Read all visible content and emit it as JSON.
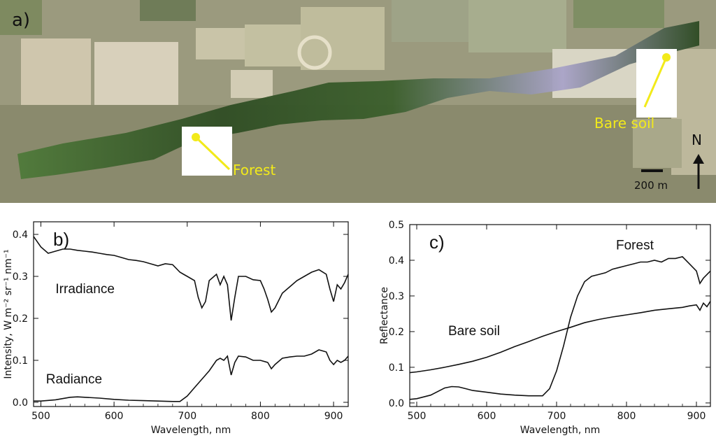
{
  "map": {
    "panel_label": "a)",
    "forest_label": "Forest",
    "bare_soil_label": "Bare soil",
    "north_label": "N",
    "scale_label": "200 m",
    "label_color": "#f2ea1a",
    "colors": {
      "field_tan": "#cdbf9c",
      "woods": "#7a7b5c",
      "forest_strip": "#2d4a22",
      "pale_field": "#e3ddc8"
    }
  },
  "chart_data": [
    {
      "type": "line",
      "panel_label": "b)",
      "title": "",
      "xlabel": "Wavelength, nm",
      "ylabel": "Intensity, W m⁻² sr⁻¹ nm⁻¹",
      "xlim": [
        490,
        920
      ],
      "ylim": [
        -0.01,
        0.43
      ],
      "x_ticks": [
        500,
        600,
        700,
        800,
        900
      ],
      "y_ticks": [
        0.0,
        0.1,
        0.2,
        0.3,
        0.4
      ],
      "y_tick_labels": [
        "0.0",
        "0.1",
        "0.2",
        "0.3",
        "0.4"
      ],
      "grid": false,
      "annotations": [
        {
          "text": "Irradiance",
          "x": 520,
          "y": 0.26
        },
        {
          "text": "Radiance",
          "x": 507,
          "y": 0.045
        }
      ],
      "series": [
        {
          "x": [
            490,
            500,
            510,
            520,
            530,
            540,
            550,
            560,
            570,
            580,
            590,
            600,
            610,
            620,
            630,
            640,
            650,
            660,
            670,
            680,
            690,
            695,
            700,
            710,
            715,
            720,
            725,
            730,
            740,
            745,
            750,
            755,
            760,
            765,
            770,
            780,
            790,
            800,
            805,
            810,
            815,
            820,
            830,
            840,
            850,
            860,
            870,
            880,
            890,
            895,
            900,
            905,
            910,
            915,
            920
          ],
          "y": [
            0.395,
            0.37,
            0.355,
            0.36,
            0.365,
            0.365,
            0.362,
            0.36,
            0.358,
            0.355,
            0.352,
            0.35,
            0.345,
            0.34,
            0.338,
            0.335,
            0.33,
            0.325,
            0.33,
            0.328,
            0.31,
            0.305,
            0.3,
            0.29,
            0.25,
            0.225,
            0.24,
            0.29,
            0.305,
            0.28,
            0.3,
            0.28,
            0.195,
            0.25,
            0.3,
            0.3,
            0.292,
            0.29,
            0.27,
            0.245,
            0.215,
            0.225,
            0.26,
            0.275,
            0.29,
            0.3,
            0.31,
            0.316,
            0.305,
            0.27,
            0.24,
            0.28,
            0.27,
            0.285,
            0.305
          ]
        },
        {
          "x": [
            490,
            500,
            520,
            540,
            550,
            560,
            580,
            600,
            620,
            640,
            660,
            680,
            690,
            700,
            710,
            720,
            730,
            740,
            745,
            750,
            755,
            760,
            765,
            770,
            780,
            790,
            800,
            810,
            815,
            820,
            830,
            840,
            850,
            860,
            870,
            880,
            890,
            895,
            900,
            905,
            910,
            915,
            920
          ],
          "y": [
            0.003,
            0.003,
            0.006,
            0.012,
            0.013,
            0.012,
            0.01,
            0.007,
            0.005,
            0.004,
            0.003,
            0.002,
            0.002,
            0.015,
            0.035,
            0.055,
            0.075,
            0.1,
            0.105,
            0.1,
            0.11,
            0.065,
            0.095,
            0.11,
            0.108,
            0.1,
            0.1,
            0.095,
            0.08,
            0.09,
            0.105,
            0.108,
            0.11,
            0.11,
            0.115,
            0.125,
            0.12,
            0.1,
            0.09,
            0.1,
            0.095,
            0.1,
            0.11
          ]
        }
      ]
    },
    {
      "type": "line",
      "panel_label": "c)",
      "title": "",
      "xlabel": "Wavelength, nm",
      "ylabel": "Reflectance",
      "xlim": [
        490,
        920
      ],
      "ylim": [
        -0.01,
        0.5
      ],
      "x_ticks": [
        500,
        600,
        700,
        800,
        900
      ],
      "y_ticks": [
        0.0,
        0.1,
        0.2,
        0.3,
        0.4,
        0.5
      ],
      "y_tick_labels": [
        "0.0",
        "0.1",
        "0.2",
        "0.3",
        "0.4",
        "0.5"
      ],
      "grid": false,
      "annotations": [
        {
          "text": "Forest",
          "x": 785,
          "y": 0.43
        },
        {
          "text": "Bare soil",
          "x": 545,
          "y": 0.19
        }
      ],
      "series": [
        {
          "x": [
            490,
            500,
            520,
            540,
            550,
            560,
            570,
            580,
            600,
            620,
            640,
            660,
            680,
            690,
            700,
            710,
            720,
            725,
            730,
            740,
            750,
            760,
            770,
            780,
            790,
            800,
            810,
            820,
            830,
            840,
            850,
            860,
            870,
            880,
            890,
            900,
            905,
            910,
            915,
            920
          ],
          "y": [
            0.01,
            0.012,
            0.022,
            0.042,
            0.046,
            0.045,
            0.04,
            0.035,
            0.03,
            0.025,
            0.022,
            0.02,
            0.02,
            0.04,
            0.09,
            0.16,
            0.24,
            0.27,
            0.3,
            0.34,
            0.355,
            0.36,
            0.365,
            0.375,
            0.38,
            0.385,
            0.39,
            0.395,
            0.395,
            0.4,
            0.395,
            0.405,
            0.405,
            0.41,
            0.39,
            0.37,
            0.335,
            0.35,
            0.36,
            0.37
          ]
        },
        {
          "x": [
            490,
            500,
            520,
            540,
            560,
            580,
            600,
            620,
            640,
            660,
            680,
            700,
            720,
            740,
            760,
            780,
            800,
            820,
            840,
            860,
            880,
            890,
            900,
            905,
            910,
            915,
            920
          ],
          "y": [
            0.085,
            0.087,
            0.093,
            0.1,
            0.108,
            0.117,
            0.128,
            0.142,
            0.158,
            0.172,
            0.187,
            0.2,
            0.212,
            0.225,
            0.234,
            0.241,
            0.247,
            0.253,
            0.26,
            0.264,
            0.268,
            0.272,
            0.275,
            0.26,
            0.28,
            0.27,
            0.285
          ]
        }
      ]
    }
  ]
}
